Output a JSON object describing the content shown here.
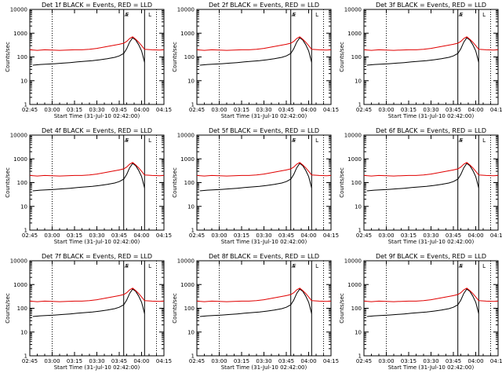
{
  "colors": {
    "events": "#000000",
    "lld": "#e00000",
    "axes": "#000000",
    "background": "#ffffff"
  },
  "common": {
    "ylabel": "Counts/sec",
    "xlabel": "Start Time (31-Jul-10 02:42:00)",
    "x_tick_labels": [
      "02:45",
      "03:00",
      "03:15",
      "03:30",
      "03:45",
      "04:00",
      "04:15"
    ],
    "y_tick_labels": [
      "1",
      "10",
      "100",
      "1000",
      "10000"
    ],
    "flag_labels": [
      "A",
      "F",
      "L"
    ]
  },
  "panels": [
    {
      "title": "Det 1f BLACK = Events, RED = LLD"
    },
    {
      "title": "Det 2f BLACK = Events, RED = LLD"
    },
    {
      "title": "Det 3f BLACK = Events, RED = LLD"
    },
    {
      "title": "Det 4f BLACK = Events, RED = LLD"
    },
    {
      "title": "Det 5f BLACK = Events, RED = LLD"
    },
    {
      "title": "Det 6f BLACK = Events, RED = LLD"
    },
    {
      "title": "Det 7f BLACK = Events, RED = LLD"
    },
    {
      "title": "Det 8f BLACK = Events, RED = LLD"
    },
    {
      "title": "Det 9f BLACK = Events, RED = LLD"
    }
  ],
  "chart_data": {
    "type": "line",
    "layout": "3x3 small multiples",
    "x_unit": "minutes since 02:42:00 (31-Jul-10)",
    "xlim": [
      3,
      93
    ],
    "ylim": [
      1,
      10000
    ],
    "yscale": "log",
    "grid": false,
    "x_ticks": [
      3,
      18,
      33,
      48,
      63,
      78,
      93
    ],
    "y_ticks": [
      1,
      10,
      100,
      1000,
      10000
    ],
    "dotted_vlines": [
      18,
      88
    ],
    "solid_vlines": [
      66,
      80
    ],
    "series": [
      {
        "name": "Events",
        "color": "#000000",
        "x": [
          5,
          10,
          15,
          20,
          25,
          30,
          35,
          40,
          45,
          50,
          55,
          60,
          63,
          66,
          68,
          70,
          72,
          74,
          76,
          78,
          80
        ],
        "y": [
          45,
          48,
          50,
          52,
          55,
          58,
          62,
          66,
          70,
          76,
          84,
          96,
          110,
          140,
          220,
          420,
          640,
          520,
          330,
          180,
          60
        ]
      },
      {
        "name": "LLD",
        "color": "#e00000",
        "x": [
          3,
          8,
          13,
          18,
          23,
          28,
          33,
          38,
          43,
          48,
          53,
          58,
          63,
          66,
          68,
          70,
          72,
          74,
          76,
          78,
          80,
          85,
          90,
          93
        ],
        "y": [
          200,
          190,
          200,
          195,
          190,
          195,
          200,
          200,
          210,
          230,
          260,
          300,
          340,
          380,
          450,
          600,
          700,
          560,
          420,
          300,
          210,
          200,
          195,
          200
        ]
      }
    ]
  }
}
